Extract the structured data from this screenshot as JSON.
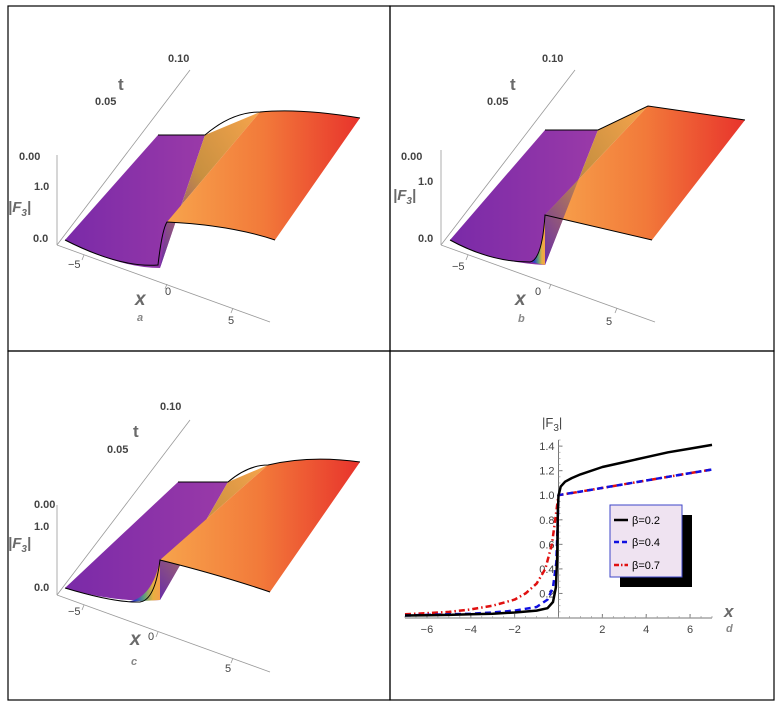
{
  "colors": {
    "purple": "#8a2fa5",
    "purple_dark": "#5a2a9a",
    "blue": "#2d3fc8",
    "green": "#5fa07a",
    "yellow": "#e8b040",
    "orange": "#f6a04a",
    "red": "#e8332c",
    "axis": "#777777",
    "label": "#6a6a6a",
    "series_black": "#000000",
    "series_blue": "#1010e0",
    "series_red": "#e01010",
    "legend_bg": "#efe3f1",
    "legend_border": "#3d46c8"
  },
  "chart_data": [
    {
      "type": "surface3d",
      "panel_label": "a",
      "xlabel": "x",
      "ylabel": "t",
      "zlabel_main": "|F",
      "zlabel_sub": "3",
      "zlabel_end": "|",
      "x_ticks": [
        "−5",
        "0",
        "5"
      ],
      "t_ticks": [
        "0.00",
        "0.05",
        "0.10"
      ],
      "z_ticks": [
        "0.0",
        "1.0"
      ],
      "xlim": [
        -7,
        7
      ],
      "tlim": [
        0,
        0.1
      ],
      "left_level": 0.0,
      "right_level": 1.0,
      "right_rise": 0.15,
      "front_edge_curve": "overshoot"
    },
    {
      "type": "surface3d",
      "panel_label": "b",
      "xlabel": "x",
      "ylabel": "t",
      "zlabel_main": "|F",
      "zlabel_sub": "3",
      "zlabel_end": "|",
      "x_ticks": [
        "−5",
        "0",
        "5"
      ],
      "t_ticks": [
        "0.00",
        "0.05",
        "0.10"
      ],
      "z_ticks": [
        "0.0",
        "1.0"
      ],
      "xlim": [
        -7,
        7
      ],
      "tlim": [
        0,
        0.1
      ],
      "left_level": 0.0,
      "right_level": 1.0,
      "right_rise": 0.15,
      "front_edge_curve": "step"
    },
    {
      "type": "surface3d",
      "panel_label": "c",
      "xlabel": "x",
      "ylabel": "t",
      "zlabel_main": "|F",
      "zlabel_sub": "3",
      "zlabel_end": "|",
      "x_ticks": [
        "−5",
        "0",
        "5"
      ],
      "t_ticks": [
        "0.00",
        "0.05",
        "0.10"
      ],
      "z_ticks": [
        "0.0",
        "1.0"
      ],
      "xlim": [
        -7,
        7
      ],
      "tlim": [
        0,
        0.1
      ],
      "left_level": 0.0,
      "right_level": 1.0,
      "right_rise": 0.15,
      "front_edge_curve": "smooth"
    },
    {
      "type": "line",
      "panel_label": "d",
      "xlabel": "x",
      "ylabel_main": "|F",
      "ylabel_sub": "3",
      "ylabel_end": "|",
      "xlim": [
        -7,
        7
      ],
      "ylim": [
        0,
        1.45
      ],
      "x_ticks": [
        -6,
        -4,
        -2,
        2,
        4,
        6
      ],
      "x_tick_labels": [
        "−6",
        "−4",
        "−2",
        "2",
        "4",
        "6"
      ],
      "y_ticks": [
        0.2,
        0.4,
        0.6,
        0.8,
        1.0,
        1.2,
        1.4
      ],
      "y_tick_labels": [
        "0.2",
        "0.4",
        "0.6",
        "0.8",
        "1.0",
        "1.2",
        "1.4"
      ],
      "legend_position": "center-right",
      "series": [
        {
          "name": "β=0.2",
          "style": "solid",
          "points": [
            [
              -7,
              0.02
            ],
            [
              -6,
              0.022
            ],
            [
              -5,
              0.025
            ],
            [
              -4,
              0.03
            ],
            [
              -3,
              0.035
            ],
            [
              -2,
              0.045
            ],
            [
              -1,
              0.06
            ],
            [
              -0.5,
              0.08
            ],
            [
              -0.25,
              0.13
            ],
            [
              -0.12,
              0.25
            ],
            [
              -0.06,
              0.5
            ],
            [
              -0.03,
              0.85
            ],
            [
              0,
              1.0
            ],
            [
              0.03,
              1.02
            ],
            [
              0.1,
              1.07
            ],
            [
              0.3,
              1.11
            ],
            [
              0.6,
              1.14
            ],
            [
              1,
              1.17
            ],
            [
              2,
              1.23
            ],
            [
              3,
              1.27
            ],
            [
              4,
              1.31
            ],
            [
              5,
              1.35
            ],
            [
              6,
              1.38
            ],
            [
              7,
              1.41
            ]
          ]
        },
        {
          "name": "β=0.4",
          "style": "dashed",
          "points": [
            [
              -7,
              0.02
            ],
            [
              -6,
              0.025
            ],
            [
              -5,
              0.03
            ],
            [
              -4,
              0.035
            ],
            [
              -3,
              0.045
            ],
            [
              -2,
              0.06
            ],
            [
              -1,
              0.09
            ],
            [
              -0.5,
              0.15
            ],
            [
              -0.25,
              0.25
            ],
            [
              -0.1,
              0.45
            ],
            [
              -0.05,
              0.7
            ],
            [
              0,
              1.0
            ],
            [
              0.3,
              1.01
            ],
            [
              1,
              1.03
            ],
            [
              2,
              1.06
            ],
            [
              3,
              1.09
            ],
            [
              4,
              1.12
            ],
            [
              5,
              1.15
            ],
            [
              6,
              1.18
            ],
            [
              7,
              1.21
            ]
          ]
        },
        {
          "name": "β=0.7",
          "style": "dashdot",
          "points": [
            [
              -7,
              0.03
            ],
            [
              -6,
              0.04
            ],
            [
              -5,
              0.05
            ],
            [
              -4,
              0.07
            ],
            [
              -3,
              0.1
            ],
            [
              -2,
              0.15
            ],
            [
              -1.5,
              0.2
            ],
            [
              -1,
              0.28
            ],
            [
              -0.6,
              0.4
            ],
            [
              -0.3,
              0.6
            ],
            [
              -0.15,
              0.8
            ],
            [
              0,
              1.0
            ],
            [
              0.5,
              1.015
            ],
            [
              1,
              1.03
            ],
            [
              2,
              1.06
            ],
            [
              3,
              1.09
            ],
            [
              4,
              1.12
            ],
            [
              5,
              1.15
            ],
            [
              6,
              1.18
            ],
            [
              7,
              1.21
            ]
          ]
        }
      ]
    }
  ]
}
